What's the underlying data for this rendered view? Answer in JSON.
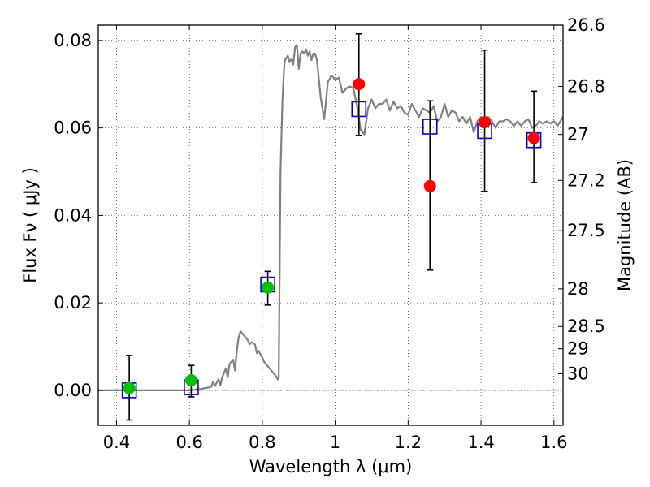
{
  "chart_data": {
    "type": "scatter",
    "xlabel": "Wavelength  λ (μm)",
    "ylabel": "Flux  Fν  ( μJy )",
    "y2label": "Magnitude (AB)",
    "xlim": [
      0.35,
      1.625
    ],
    "ylim": [
      -0.008,
      0.0835
    ],
    "xticks": [
      0.4,
      0.6,
      0.8,
      1.0,
      1.2,
      1.4,
      1.6
    ],
    "xtick_labels": [
      "0.4",
      "0.6",
      "0.8",
      "1",
      "1.2",
      "1.4",
      "1.6"
    ],
    "yticks": [
      0.0,
      0.02,
      0.04,
      0.06,
      0.08
    ],
    "ytick_labels": [
      "0.00",
      "0.02",
      "0.04",
      "0.06",
      "0.08"
    ],
    "y2ticks": [
      {
        "label": "26.6",
        "flux": 0.0835
      },
      {
        "label": "26.8",
        "flux": 0.0695
      },
      {
        "label": "27",
        "flux": 0.0585
      },
      {
        "label": "27.2",
        "flux": 0.048
      },
      {
        "label": "27.5",
        "flux": 0.0365
      },
      {
        "label": "28",
        "flux": 0.0232
      },
      {
        "label": "28.5",
        "flux": 0.0146
      },
      {
        "label": "29",
        "flux": 0.0095
      },
      {
        "label": "30",
        "flux": 0.0038
      }
    ],
    "grid": true,
    "colors": {
      "model": "#808080",
      "green": "#00c000",
      "red": "#ff0000",
      "box": "#0000cc",
      "errorbar": "#000000",
      "zero": "#555555"
    },
    "series": [
      {
        "kind": "line",
        "color": "#808080",
        "x": [
          0.35,
          0.4,
          0.45,
          0.5,
          0.55,
          0.6,
          0.63,
          0.66,
          0.665,
          0.67,
          0.68,
          0.685,
          0.69,
          0.7,
          0.705,
          0.71,
          0.72,
          0.725,
          0.73,
          0.735,
          0.74,
          0.745,
          0.75,
          0.76,
          0.765,
          0.77,
          0.78,
          0.785,
          0.79,
          0.8,
          0.805,
          0.81,
          0.82,
          0.825,
          0.83,
          0.84,
          0.842,
          0.845,
          0.85,
          0.855,
          0.86,
          0.862,
          0.865,
          0.87,
          0.875,
          0.88,
          0.885,
          0.89,
          0.895,
          0.9,
          0.905,
          0.91,
          0.915,
          0.92,
          0.925,
          0.93,
          0.935,
          0.94,
          0.945,
          0.95,
          0.96,
          0.97,
          0.98,
          0.99,
          1.0,
          1.01,
          1.02,
          1.03,
          1.04,
          1.05,
          1.06,
          1.07,
          1.08,
          1.09,
          1.1,
          1.11,
          1.12,
          1.13,
          1.14,
          1.15,
          1.16,
          1.17,
          1.18,
          1.19,
          1.2,
          1.21,
          1.22,
          1.23,
          1.24,
          1.25,
          1.26,
          1.27,
          1.28,
          1.29,
          1.3,
          1.31,
          1.32,
          1.33,
          1.34,
          1.35,
          1.36,
          1.37,
          1.38,
          1.39,
          1.4,
          1.41,
          1.42,
          1.43,
          1.44,
          1.45,
          1.46,
          1.47,
          1.48,
          1.49,
          1.5,
          1.51,
          1.52,
          1.53,
          1.54,
          1.55,
          1.56,
          1.57,
          1.58,
          1.59,
          1.6,
          1.61,
          1.625
        ],
        "y": [
          0.0,
          0.0,
          0.0,
          0.0,
          0.0,
          0.0,
          0.0003,
          0.0008,
          0.002,
          0.001,
          0.0025,
          0.0012,
          0.003,
          0.005,
          0.003,
          0.006,
          0.007,
          0.0045,
          0.009,
          0.012,
          0.0135,
          0.013,
          0.0125,
          0.0115,
          0.0105,
          0.011,
          0.0105,
          0.0085,
          0.009,
          0.0075,
          0.0065,
          0.006,
          0.005,
          0.0045,
          0.004,
          0.003,
          0.0025,
          0.003,
          0.05,
          0.066,
          0.074,
          0.0755,
          0.0758,
          0.0765,
          0.075,
          0.0758,
          0.0745,
          0.0785,
          0.079,
          0.0735,
          0.077,
          0.0775,
          0.077,
          0.078,
          0.0765,
          0.0775,
          0.0755,
          0.077,
          0.077,
          0.0755,
          0.067,
          0.062,
          0.0705,
          0.072,
          0.071,
          0.0715,
          0.068,
          0.069,
          0.0695,
          0.069,
          0.065,
          0.0595,
          0.0585,
          0.0645,
          0.0665,
          0.0645,
          0.0655,
          0.0655,
          0.0665,
          0.064,
          0.066,
          0.0645,
          0.065,
          0.0635,
          0.063,
          0.0655,
          0.064,
          0.0625,
          0.0645,
          0.064,
          0.0635,
          0.065,
          0.0615,
          0.0625,
          0.0655,
          0.0625,
          0.064,
          0.0635,
          0.0615,
          0.0625,
          0.061,
          0.0625,
          0.059,
          0.0615,
          0.0625,
          0.061,
          0.0625,
          0.0615,
          0.06,
          0.0615,
          0.0615,
          0.062,
          0.0615,
          0.0605,
          0.0615,
          0.0605,
          0.0615,
          0.062,
          0.06,
          0.0605,
          0.0615,
          0.061,
          0.0615,
          0.061,
          0.0615,
          0.0605,
          0.0625
        ]
      },
      {
        "kind": "square",
        "color": "#0000cc",
        "x": [
          0.435,
          0.605,
          0.815,
          1.065,
          1.26,
          1.41,
          1.545
        ],
        "y": [
          0.0,
          0.0007,
          0.0242,
          0.0643,
          0.0603,
          0.0593,
          0.0572
        ]
      },
      {
        "kind": "errorbar",
        "color": "#000000",
        "x": [
          0.435,
          0.605,
          0.815,
          1.065,
          1.26,
          1.41,
          1.545
        ],
        "ylow": [
          -0.0068,
          -0.0015,
          0.0195,
          0.0583,
          0.0275,
          0.0455,
          0.0475
        ],
        "yhigh": [
          0.008,
          0.0057,
          0.0272,
          0.0815,
          0.0662,
          0.0778,
          0.0684
        ]
      },
      {
        "kind": "dot",
        "color": "#00c000",
        "x": [
          0.435,
          0.605,
          0.815
        ],
        "y": [
          0.0005,
          0.0023,
          0.0235
        ]
      },
      {
        "kind": "dot",
        "color": "#ff0000",
        "x": [
          1.065,
          1.26,
          1.41,
          1.545
        ],
        "y": [
          0.07,
          0.0467,
          0.0613,
          0.0577
        ]
      }
    ]
  }
}
